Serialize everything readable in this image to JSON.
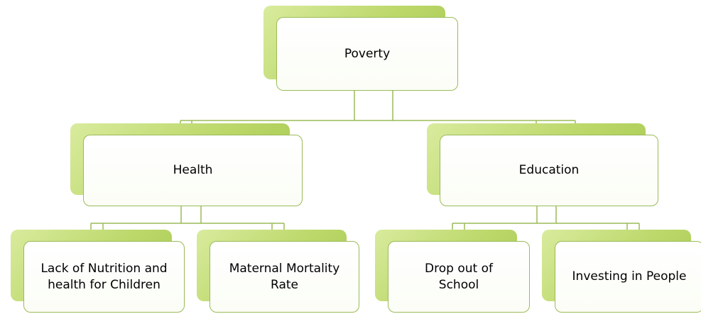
{
  "nodes": [
    {
      "label": "Poverty"
    },
    {
      "label": "Health"
    },
    {
      "label": "Education"
    },
    {
      "label": "Lack of Nutrition and health for Children"
    },
    {
      "label": "Maternal Mortality Rate"
    },
    {
      "label": "Drop out of School"
    },
    {
      "label": "Investing in People"
    }
  ]
}
